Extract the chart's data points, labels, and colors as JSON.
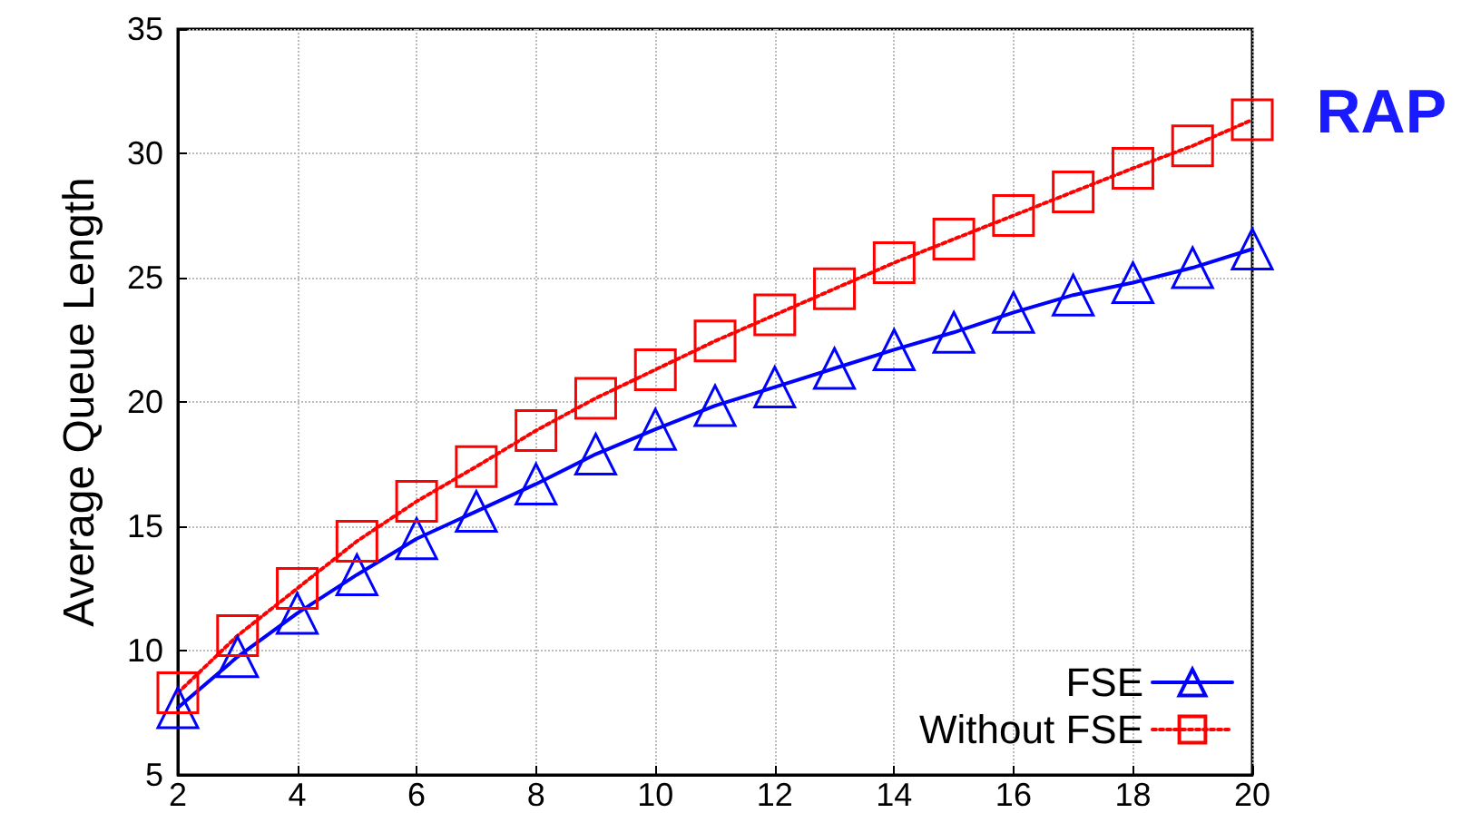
{
  "chart_data": {
    "type": "line",
    "ylabel": "Average Queue Length",
    "annotations": [
      "RAP"
    ],
    "x": [
      2,
      3,
      4,
      5,
      6,
      7,
      8,
      9,
      10,
      11,
      12,
      13,
      14,
      15,
      16,
      17,
      18,
      19,
      20
    ],
    "xlim": [
      2,
      20
    ],
    "xticks": [
      2,
      4,
      6,
      8,
      10,
      12,
      14,
      16,
      18,
      20
    ],
    "ylim": [
      5,
      35
    ],
    "yticks": [
      5,
      10,
      15,
      20,
      25,
      30,
      35
    ],
    "grid": true,
    "legend": "bottom right",
    "series": [
      {
        "name": "FSE",
        "color": "#0000ff",
        "marker": "triangle",
        "line_style": "solid",
        "values": [
          7.7,
          9.75,
          11.5,
          13.05,
          14.5,
          15.6,
          16.7,
          17.9,
          18.9,
          19.85,
          20.6,
          21.35,
          22.1,
          22.8,
          23.6,
          24.3,
          24.8,
          25.4,
          26.15
        ]
      },
      {
        "name": "Without FSE",
        "color": "#ff0000",
        "marker": "square",
        "line_style": "dotted",
        "values": [
          8.3,
          10.6,
          12.5,
          14.4,
          16.0,
          17.4,
          18.85,
          20.15,
          21.3,
          22.45,
          23.5,
          24.55,
          25.6,
          26.55,
          27.5,
          28.45,
          29.4,
          30.3,
          31.35
        ]
      }
    ]
  }
}
